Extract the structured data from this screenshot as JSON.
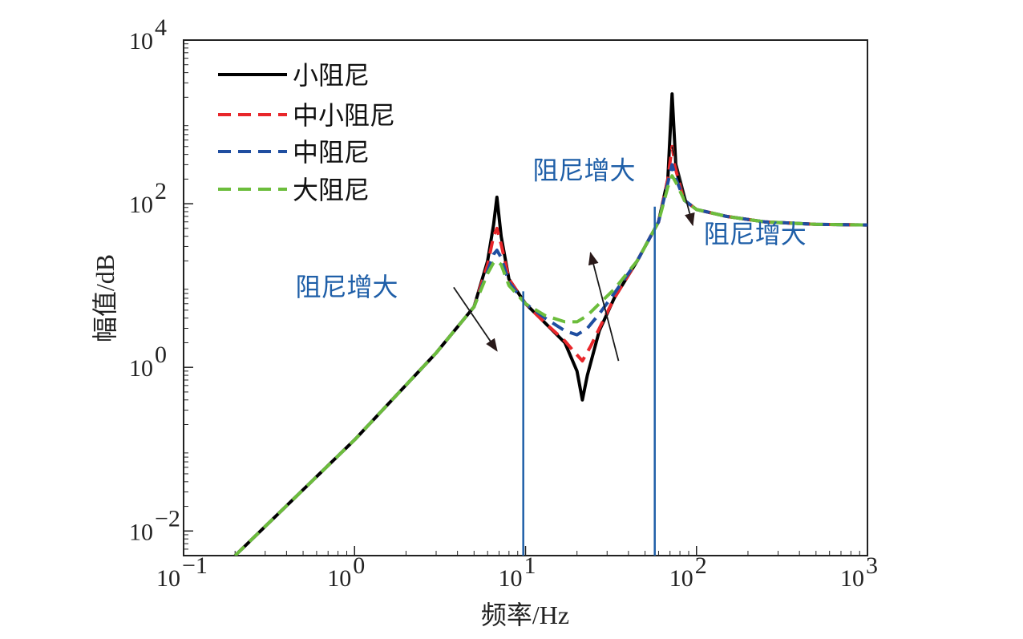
{
  "chart_data": {
    "type": "line",
    "xscale": "log",
    "yscale": "log",
    "xlim": [
      0.1,
      1000
    ],
    "ylim": [
      0.005,
      10000
    ],
    "xlabel": "频率/Hz",
    "ylabel": "幅值/dB",
    "x_ticks": [
      {
        "value": 0.1,
        "base": "10",
        "exp": "−1"
      },
      {
        "value": 1,
        "base": "10",
        "exp": "0"
      },
      {
        "value": 10,
        "base": "10",
        "exp": "1"
      },
      {
        "value": 100,
        "base": "10",
        "exp": "2"
      },
      {
        "value": 1000,
        "base": "10",
        "exp": "3"
      }
    ],
    "y_ticks": [
      {
        "value": 0.01,
        "base": "10",
        "exp": "−2"
      },
      {
        "value": 1,
        "base": "10",
        "exp": "0"
      },
      {
        "value": 100,
        "base": "10",
        "exp": "2"
      },
      {
        "value": 10000,
        "base": "10",
        "exp": "4"
      }
    ],
    "legend_position": "top-left",
    "series": [
      {
        "name": "小阻尼",
        "color": "#000000",
        "style": "solid",
        "x": [
          0.2,
          1,
          3,
          5,
          6,
          6.5,
          6.8,
          7.2,
          8,
          10,
          13,
          17,
          20,
          21.5,
          23,
          27,
          33,
          45,
          60,
          68,
          72,
          76,
          85,
          100,
          150,
          250,
          500,
          1000
        ],
        "y": [
          0.005,
          0.13,
          1.5,
          5.5,
          20,
          55,
          120,
          40,
          12,
          6,
          3.5,
          2.0,
          0.9,
          0.4,
          0.8,
          2.8,
          7,
          20,
          60,
          200,
          2200,
          260,
          110,
          85,
          70,
          60,
          56,
          55
        ]
      },
      {
        "name": "中小阻尼",
        "color": "#e8262a",
        "style": "dashed",
        "x": [
          0.2,
          1,
          3,
          5,
          6,
          6.5,
          6.8,
          7.2,
          8,
          10,
          13,
          17,
          19,
          21.5,
          24,
          28,
          33,
          45,
          60,
          68,
          72,
          76,
          85,
          100,
          150,
          250,
          500,
          1000
        ],
        "y": [
          0.005,
          0.13,
          1.5,
          5.5,
          18,
          40,
          50,
          32,
          12,
          6,
          3.5,
          2.1,
          1.6,
          1.2,
          1.8,
          3.5,
          7,
          20,
          60,
          200,
          500,
          250,
          110,
          85,
          70,
          60,
          56,
          55
        ]
      },
      {
        "name": "中阻尼",
        "color": "#1f4ea0",
        "style": "dashed",
        "x": [
          0.2,
          1,
          3,
          5,
          6,
          6.5,
          6.8,
          7.2,
          8,
          10,
          13,
          17,
          20,
          23,
          27,
          33,
          45,
          60,
          68,
          72,
          76,
          85,
          100,
          150,
          250,
          500,
          1000
        ],
        "y": [
          0.005,
          0.13,
          1.5,
          5.5,
          15,
          24,
          27,
          22,
          11,
          6,
          4,
          2.8,
          2.5,
          3,
          4.5,
          8,
          20,
          60,
          180,
          300,
          200,
          110,
          85,
          70,
          60,
          56,
          55
        ]
      },
      {
        "name": "大阻尼",
        "color": "#6cbd3c",
        "style": "dashed",
        "x": [
          0.2,
          1,
          3,
          5,
          6,
          6.5,
          6.8,
          7.2,
          8,
          10,
          13,
          17,
          20,
          23,
          27,
          33,
          45,
          60,
          68,
          72,
          76,
          85,
          100,
          150,
          250,
          500,
          1000
        ],
        "y": [
          0.005,
          0.13,
          1.5,
          5.5,
          14,
          19,
          20,
          18,
          10,
          6,
          4.3,
          3.6,
          3.6,
          4.3,
          6,
          9,
          20,
          60,
          160,
          220,
          180,
          110,
          85,
          70,
          60,
          56,
          55
        ]
      }
    ],
    "vertical_lines": [
      {
        "x": 9.7,
        "y_top": 8.5,
        "color": "#1f5fa8"
      },
      {
        "x": 57,
        "y_top": 92,
        "color": "#1f5fa8"
      }
    ],
    "annotations": [
      {
        "text": "阻尼增大",
        "anchor_x": 0.9,
        "anchor_y": 7.5,
        "color": "#1f5fa8"
      },
      {
        "text": "阻尼增大",
        "anchor_x": 22,
        "anchor_y": 200,
        "color": "#1f5fa8"
      },
      {
        "text": "阻尼增大",
        "anchor_x": 220,
        "anchor_y": 33,
        "color": "#1f5fa8"
      }
    ],
    "arrows": [
      {
        "x1": 3.8,
        "y1": 9.5,
        "x2": 6.8,
        "y2": 1.6
      },
      {
        "x1": 35,
        "y1": 1.2,
        "x2": 24,
        "y2": 25
      },
      {
        "x1": 72,
        "y1": 500,
        "x2": 95,
        "y2": 55
      }
    ]
  }
}
